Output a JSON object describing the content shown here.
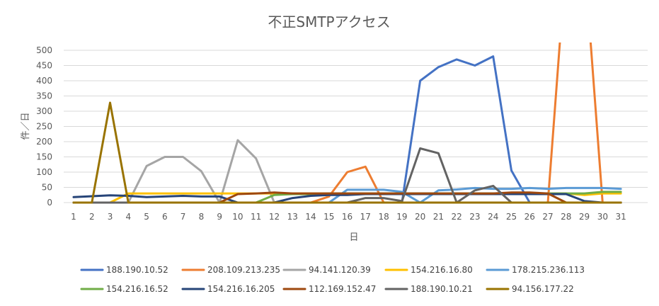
{
  "chart_data": {
    "type": "line",
    "title": "不正SMTPアクセス",
    "xlabel": "日",
    "ylabel": "件／日",
    "ylim": [
      0,
      500
    ],
    "y_ticks": [
      0,
      50,
      100,
      150,
      200,
      250,
      300,
      350,
      400,
      450,
      500
    ],
    "grid": true,
    "legend_position": "bottom",
    "categories": [
      "1",
      "2",
      "3",
      "4",
      "5",
      "6",
      "7",
      "8",
      "9",
      "10",
      "11",
      "12",
      "13",
      "14",
      "15",
      "16",
      "17",
      "18",
      "19",
      "20",
      "21",
      "22",
      "23",
      "24",
      "25",
      "26",
      "27",
      "28",
      "29",
      "30",
      "31"
    ],
    "series": [
      {
        "name": "188.190.10.52",
        "color": "#4472C4",
        "values": [
          0,
          0,
          0,
          0,
          0,
          0,
          0,
          0,
          0,
          0,
          0,
          0,
          0,
          0,
          0,
          0,
          0,
          0,
          0,
          400,
          445,
          470,
          450,
          480,
          105,
          0,
          0,
          0,
          0,
          0,
          0
        ]
      },
      {
        "name": "208.109.213.235",
        "color": "#ED7D31",
        "values": [
          0,
          0,
          0,
          0,
          0,
          0,
          0,
          0,
          0,
          0,
          0,
          0,
          0,
          0,
          20,
          100,
          118,
          0,
          0,
          0,
          0,
          0,
          0,
          0,
          0,
          0,
          0,
          800,
          800,
          0,
          0
        ]
      },
      {
        "name": "94.141.120.39",
        "color": "#A5A5A5",
        "values": [
          0,
          0,
          0,
          0,
          120,
          150,
          150,
          103,
          0,
          205,
          145,
          0,
          0,
          0,
          0,
          0,
          0,
          0,
          0,
          0,
          0,
          0,
          0,
          0,
          0,
          0,
          0,
          0,
          0,
          0,
          0
        ]
      },
      {
        "name": "154.216.16.80",
        "color": "#FFC000",
        "values": [
          0,
          0,
          0,
          30,
          30,
          30,
          30,
          30,
          30,
          30,
          30,
          30,
          30,
          30,
          30,
          30,
          30,
          30,
          30,
          30,
          30,
          30,
          30,
          30,
          30,
          30,
          30,
          30,
          25,
          30,
          30
        ]
      },
      {
        "name": "178.215.236.113",
        "color": "#5B9BD5",
        "values": [
          0,
          0,
          0,
          0,
          0,
          0,
          0,
          0,
          0,
          0,
          0,
          0,
          0,
          0,
          0,
          42,
          42,
          42,
          35,
          0,
          40,
          43,
          48,
          45,
          45,
          48,
          45,
          48,
          48,
          48,
          45
        ]
      },
      {
        "name": "154.216.16.52",
        "color": "#70AD47",
        "values": [
          0,
          0,
          0,
          0,
          0,
          0,
          0,
          0,
          0,
          0,
          0,
          25,
          28,
          28,
          30,
          30,
          30,
          30,
          30,
          30,
          30,
          30,
          30,
          30,
          30,
          30,
          30,
          30,
          30,
          35,
          35
        ]
      },
      {
        "name": "154.216.16.205",
        "color": "#264478",
        "values": [
          18,
          21,
          24,
          22,
          18,
          20,
          22,
          20,
          20,
          0,
          0,
          0,
          15,
          22,
          25,
          25,
          28,
          28,
          28,
          28,
          28,
          28,
          28,
          28,
          28,
          28,
          28,
          28,
          5,
          0,
          0
        ]
      },
      {
        "name": "112.169.152.47",
        "color": "#9E480E",
        "values": [
          0,
          0,
          0,
          0,
          0,
          0,
          0,
          0,
          0,
          28,
          30,
          33,
          30,
          30,
          30,
          30,
          30,
          30,
          30,
          30,
          30,
          30,
          30,
          30,
          33,
          33,
          30,
          0,
          0,
          0,
          0
        ]
      },
      {
        "name": "188.190.10.21",
        "color": "#636363",
        "values": [
          0,
          0,
          0,
          0,
          0,
          0,
          0,
          0,
          0,
          0,
          0,
          0,
          0,
          0,
          0,
          0,
          15,
          15,
          5,
          178,
          162,
          0,
          40,
          55,
          0,
          0,
          0,
          0,
          0,
          0,
          0
        ]
      },
      {
        "name": "94.156.177.22",
        "color": "#997300",
        "values": [
          0,
          0,
          328,
          0,
          0,
          0,
          0,
          0,
          0,
          0,
          0,
          0,
          0,
          0,
          0,
          0,
          0,
          0,
          0,
          0,
          0,
          0,
          0,
          0,
          0,
          0,
          0,
          0,
          0,
          0,
          0
        ]
      }
    ]
  }
}
